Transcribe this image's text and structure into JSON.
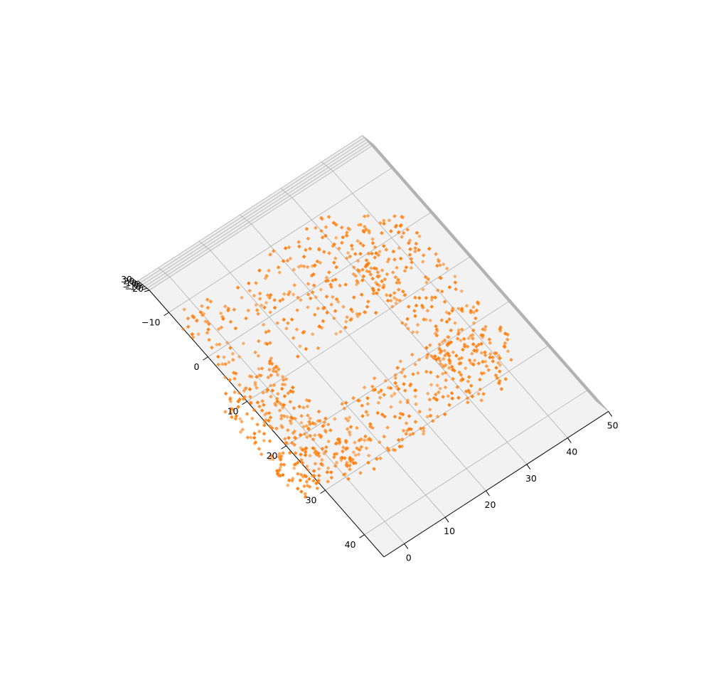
{
  "chart_data": {
    "type": "scatter",
    "projection": "3d",
    "title": "",
    "series": [
      {
        "marker": "square",
        "color": "#ff7f0e",
        "surfaces": [
          {
            "part": "right-rim",
            "x": [
              -5,
              35
            ],
            "y": [
              -8,
              10
            ],
            "z_range": [
              -20,
              15
            ]
          },
          {
            "part": "bottom-rim",
            "x": [
              30,
              45
            ],
            "y": [
              -5,
              30
            ],
            "z_range": [
              -20,
              15
            ]
          },
          {
            "part": "left-rim",
            "x": [
              0,
              40
            ],
            "y": [
              20,
              32
            ],
            "z_range": [
              -20,
              15
            ]
          },
          {
            "part": "top-rim",
            "x": [
              -10,
              5
            ],
            "y": [
              8,
              30
            ],
            "z_range": [
              -20,
              15
            ]
          }
        ]
      }
    ],
    "axes": {
      "x": {
        "ticks": [
          0,
          10,
          20,
          30,
          40,
          50
        ],
        "range": [
          -5,
          50
        ]
      },
      "y": {
        "ticks": [
          -10,
          0,
          10,
          20,
          30,
          40
        ],
        "range": [
          -15,
          45
        ]
      },
      "z": {
        "ticks": [
          -20,
          -10,
          0,
          10,
          20,
          30
        ],
        "tick_labels": [
          "−20",
          "−10",
          "0",
          "10",
          "20",
          "30"
        ],
        "range": [
          -20,
          30
        ]
      }
    },
    "grid": true,
    "pane_color": "#f2f2f2",
    "grid_color": "#b0b0b0"
  }
}
